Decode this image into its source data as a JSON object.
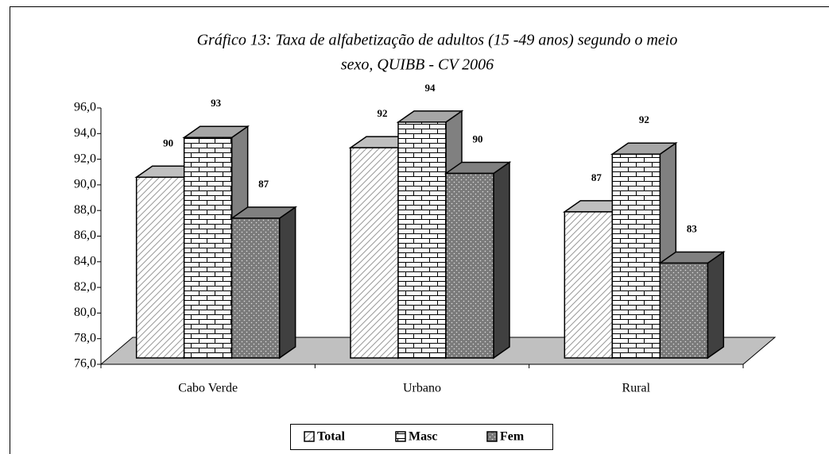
{
  "chart_data": {
    "type": "bar3d",
    "title": "Gráfico 13:  Taxa de alfabetização de adultos (15 -49 anos) segundo o meio",
    "subtitle": "sexo, QUIBB - CV 2006",
    "categories": [
      "Cabo Verde",
      "Urbano",
      "Rural"
    ],
    "series": [
      {
        "name": "Total",
        "color": "#d9d9d9",
        "values": [
          90.1,
          92.4,
          87.4
        ],
        "value_labels": [
          "90",
          "92",
          "87"
        ]
      },
      {
        "name": "Masc",
        "color": "#ffffff",
        "values": [
          93.2,
          94.4,
          91.9
        ],
        "value_labels": [
          "93",
          "94",
          "92"
        ]
      },
      {
        "name": "Fem",
        "color": "#808080",
        "values": [
          86.9,
          90.4,
          83.4
        ],
        "value_labels": [
          "87",
          "90",
          "83"
        ]
      }
    ],
    "ylim": [
      76,
      96
    ],
    "yticks": [
      {
        "value": 76,
        "label": "76,0"
      },
      {
        "value": 78,
        "label": "78,0"
      },
      {
        "value": 80,
        "label": "80,0"
      },
      {
        "value": 82,
        "label": "82,0"
      },
      {
        "value": 84,
        "label": "84,0"
      },
      {
        "value": 86,
        "label": "86,0"
      },
      {
        "value": 88,
        "label": "88,0"
      },
      {
        "value": 90,
        "label": "90,0"
      },
      {
        "value": 92,
        "label": "92,0"
      },
      {
        "value": 94,
        "label": "94,0"
      },
      {
        "value": 96,
        "label": "96,0"
      }
    ],
    "legend": "bottom"
  }
}
